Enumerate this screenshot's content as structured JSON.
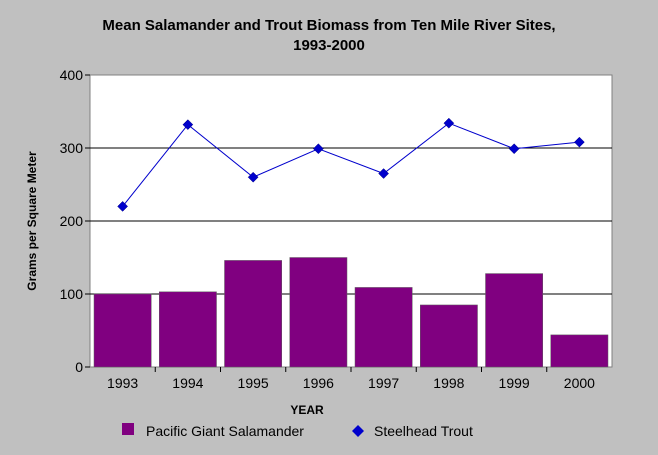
{
  "chart_data": {
    "type": "bar",
    "title": "Mean Salamander and Trout Biomass from Ten Mile River Sites,",
    "subtitle": "1993-2000",
    "xlabel": "YEAR",
    "ylabel": "Grams per Square Meter",
    "ylim": [
      0,
      400
    ],
    "yticks": [
      "0",
      "100",
      "200",
      "300",
      "400"
    ],
    "grid": true,
    "legend_position": "bottom",
    "categories": [
      "1993",
      "1994",
      "1995",
      "1996",
      "1997",
      "1998",
      "1999",
      "2000"
    ],
    "series": [
      {
        "name": "Pacific Giant Salamander",
        "type": "bar",
        "color": "#800080",
        "values": [
          100,
          103,
          146,
          150,
          109,
          85,
          128,
          44
        ]
      },
      {
        "name": "Steelhead Trout",
        "type": "line",
        "marker": "diamond",
        "color": "#0000cc",
        "values": [
          220,
          332,
          260,
          299,
          265,
          334,
          299,
          308
        ]
      }
    ]
  }
}
